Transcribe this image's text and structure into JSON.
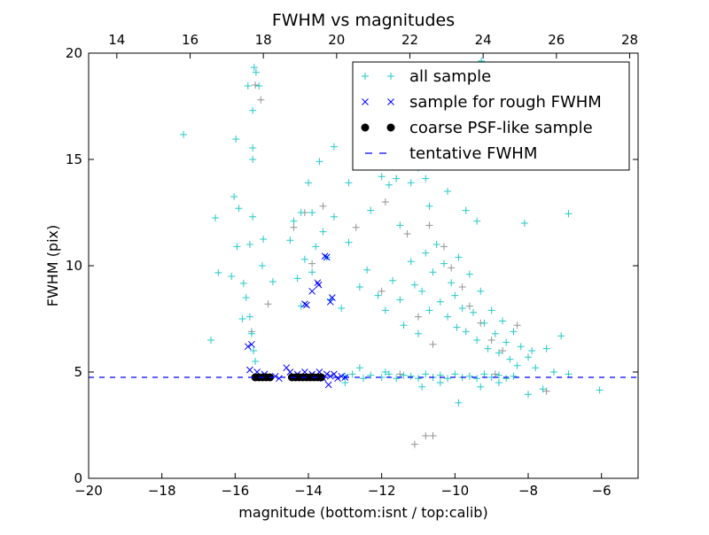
{
  "chart_data": {
    "type": "scatter",
    "title": "FWHM vs magnitudes",
    "xlabel": "magnitude (bottom:isnt / top:calib)",
    "ylabel": "FWHM (pix)",
    "xlim": [
      -20,
      -5
    ],
    "ylim": [
      0,
      20
    ],
    "top_xlim": [
      13.23,
      28.23
    ],
    "xticks": [
      -20,
      -18,
      -16,
      -14,
      -12,
      -10,
      -8,
      -6
    ],
    "xtick_labels": [
      "−20",
      "−18",
      "−16",
      "−14",
      "−12",
      "−10",
      "−8",
      "−6"
    ],
    "top_xticks": [
      14,
      16,
      18,
      20,
      22,
      24,
      26,
      28
    ],
    "top_xtick_labels": [
      "14",
      "16",
      "18",
      "20",
      "22",
      "24",
      "26",
      "28"
    ],
    "yticks": [
      0,
      5,
      10,
      15,
      20
    ],
    "ytick_labels": [
      "0",
      "5",
      "10",
      "15",
      "20"
    ],
    "legend_position": "upper-right",
    "grid": false,
    "tentative_fwhm": 4.75,
    "colors": {
      "all": "#00bfbf",
      "rejected": "#808080",
      "rough": "#0000ff",
      "psf": "#000000",
      "line": "#0000ff"
    },
    "series": [
      {
        "name": "all sample",
        "marker": "plus",
        "color": "#00bfbf",
        "points": [
          [
            -17.41,
            16.17
          ],
          [
            -15.48,
            19.33
          ],
          [
            -15.43,
            19.1
          ],
          [
            -15.65,
            18.46
          ],
          [
            -15.35,
            18.46
          ],
          [
            -15.52,
            17.3
          ],
          [
            -15.98,
            15.96
          ],
          [
            -16.03,
            13.25
          ],
          [
            -16.54,
            12.25
          ],
          [
            -16.46,
            9.67
          ],
          [
            -16.66,
            6.5
          ],
          [
            -15.52,
            15.54
          ],
          [
            -15.52,
            15.0
          ],
          [
            -15.52,
            12.3
          ],
          [
            -15.23,
            11.25
          ],
          [
            -14.97,
            9.25
          ],
          [
            -15.77,
            9.17
          ],
          [
            -15.26,
            10.0
          ],
          [
            -15.9,
            12.7
          ],
          [
            -15.6,
            11.0
          ],
          [
            -15.7,
            8.5
          ],
          [
            -15.6,
            7.6
          ],
          [
            -15.55,
            6.8
          ],
          [
            -15.5,
            6.0
          ],
          [
            -15.45,
            5.5
          ],
          [
            -15.8,
            7.5
          ],
          [
            -16.1,
            9.5
          ],
          [
            -15.95,
            10.9
          ],
          [
            -14.4,
            12.1
          ],
          [
            -14.2,
            12.5
          ],
          [
            -14.0,
            13.9
          ],
          [
            -13.9,
            12.5
          ],
          [
            -13.7,
            14.9
          ],
          [
            -13.6,
            11.6
          ],
          [
            -13.3,
            15.6
          ],
          [
            -13.3,
            12.3
          ],
          [
            -14.1,
            10.3
          ],
          [
            -14.3,
            9.4
          ],
          [
            -13.8,
            10.9
          ],
          [
            -13.5,
            10.4
          ],
          [
            -14.5,
            11.2
          ],
          [
            -13.4,
            8.4
          ],
          [
            -14.2,
            8.1
          ],
          [
            -13.9,
            9.7
          ],
          [
            -13.1,
            8.0
          ],
          [
            -12.9,
            13.9
          ],
          [
            -12.9,
            11.1
          ],
          [
            -12.6,
            9.0
          ],
          [
            -12.3,
            12.6
          ],
          [
            -12.2,
            14.7
          ],
          [
            -12.0,
            14.2
          ],
          [
            -11.8,
            13.8
          ],
          [
            -11.6,
            14.1
          ],
          [
            -11.5,
            11.9
          ],
          [
            -11.3,
            15.9
          ],
          [
            -11.2,
            13.9
          ],
          [
            -11.0,
            14.6
          ],
          [
            -10.9,
            17.2
          ],
          [
            -10.8,
            14.1
          ],
          [
            -10.7,
            12.8
          ],
          [
            -10.6,
            15.4
          ],
          [
            -10.3,
            17.5
          ],
          [
            -10.1,
            19.1
          ],
          [
            -9.9,
            16.6
          ],
          [
            -9.5,
            17.0
          ],
          [
            -9.28,
            19.63
          ],
          [
            -8.87,
            19.0
          ],
          [
            -10.2,
            13.5
          ],
          [
            -9.7,
            12.6
          ],
          [
            -9.4,
            12.1
          ],
          [
            -8.1,
            12.0
          ],
          [
            -6.9,
            12.45
          ],
          [
            -12.4,
            9.8
          ],
          [
            -12.1,
            8.6
          ],
          [
            -11.9,
            7.9
          ],
          [
            -11.7,
            9.3
          ],
          [
            -11.5,
            8.4
          ],
          [
            -11.4,
            7.2
          ],
          [
            -11.2,
            10.2
          ],
          [
            -11.1,
            9.1
          ],
          [
            -11.0,
            6.8
          ],
          [
            -10.9,
            8.8
          ],
          [
            -10.8,
            10.6
          ],
          [
            -10.7,
            7.9
          ],
          [
            -10.6,
            9.7
          ],
          [
            -10.5,
            11.0
          ],
          [
            -10.4,
            8.3
          ],
          [
            -10.3,
            10.1
          ],
          [
            -10.2,
            7.6
          ],
          [
            -10.1,
            9.2
          ],
          [
            -10.0,
            8.6
          ],
          [
            -9.95,
            7.1
          ],
          [
            -9.9,
            10.4
          ],
          [
            -9.8,
            8.0
          ],
          [
            -9.7,
            6.9
          ],
          [
            -9.6,
            9.6
          ],
          [
            -9.5,
            7.8
          ],
          [
            -9.4,
            6.5
          ],
          [
            -9.3,
            8.8
          ],
          [
            -9.2,
            7.3
          ],
          [
            -9.1,
            6.1
          ],
          [
            -9.0,
            7.9
          ],
          [
            -8.9,
            6.8
          ],
          [
            -8.8,
            5.9
          ],
          [
            -8.7,
            7.4
          ],
          [
            -8.6,
            6.4
          ],
          [
            -8.5,
            5.6
          ],
          [
            -8.4,
            6.9
          ],
          [
            -8.3,
            5.3
          ],
          [
            -8.2,
            6.2
          ],
          [
            -8.0,
            5.7
          ],
          [
            -7.9,
            6.0
          ],
          [
            -7.8,
            5.2
          ],
          [
            -7.5,
            6.1
          ],
          [
            -7.3,
            5.0
          ],
          [
            -7.1,
            6.7
          ],
          [
            -6.9,
            4.9
          ],
          [
            -6.05,
            4.15
          ],
          [
            -9.9,
            3.55
          ],
          [
            -9.3,
            4.3
          ],
          [
            -8.8,
            4.5
          ],
          [
            -8.0,
            3.95
          ],
          [
            -7.6,
            4.2
          ],
          [
            -10.4,
            4.5
          ],
          [
            -10.9,
            4.3
          ],
          [
            -13.0,
            4.8
          ],
          [
            -12.8,
            4.9
          ],
          [
            -12.5,
            4.7
          ],
          [
            -12.3,
            4.85
          ],
          [
            -12.0,
            4.75
          ],
          [
            -11.8,
            4.9
          ],
          [
            -11.6,
            4.7
          ],
          [
            -11.4,
            4.85
          ],
          [
            -11.2,
            4.8
          ],
          [
            -11.0,
            4.7
          ],
          [
            -10.8,
            4.9
          ],
          [
            -10.6,
            4.75
          ],
          [
            -10.4,
            4.85
          ],
          [
            -10.2,
            4.7
          ],
          [
            -10.0,
            4.9
          ],
          [
            -9.8,
            4.75
          ],
          [
            -9.6,
            4.8
          ],
          [
            -9.4,
            4.7
          ],
          [
            -9.2,
            4.9
          ],
          [
            -9.0,
            4.75
          ],
          [
            -8.8,
            4.85
          ],
          [
            -8.6,
            4.7
          ],
          [
            -8.4,
            4.8
          ],
          [
            -13.0,
            4.5
          ],
          [
            -12.6,
            5.2
          ],
          [
            -11.9,
            5.0
          ]
        ]
      },
      {
        "name": "rejected",
        "marker": "plus",
        "color": "#808080",
        "points": [
          [
            -15.45,
            18.5
          ],
          [
            -15.3,
            17.8
          ],
          [
            -15.55,
            6.9
          ],
          [
            -15.1,
            8.2
          ],
          [
            -14.4,
            11.8
          ],
          [
            -14.1,
            12.5
          ],
          [
            -13.9,
            10.1
          ],
          [
            -13.6,
            12.8
          ],
          [
            -12.7,
            11.8
          ],
          [
            -11.9,
            13.0
          ],
          [
            -11.3,
            11.5
          ],
          [
            -10.7,
            11.9
          ],
          [
            -10.3,
            10.9
          ],
          [
            -10.1,
            9.9
          ],
          [
            -9.8,
            9.0
          ],
          [
            -9.6,
            8.1
          ],
          [
            -9.3,
            7.3
          ],
          [
            -9.0,
            6.5
          ],
          [
            -8.7,
            6.0
          ],
          [
            -8.3,
            7.2
          ],
          [
            -12.0,
            8.8
          ],
          [
            -11.0,
            7.6
          ],
          [
            -10.6,
            6.3
          ],
          [
            -11.1,
            1.6
          ],
          [
            -10.8,
            2.0
          ],
          [
            -10.6,
            2.0
          ],
          [
            -7.5,
            4.1
          ],
          [
            -8.9,
            4.9
          ],
          [
            -11.5,
            4.9
          ]
        ]
      },
      {
        "name": "sample for rough FWHM",
        "marker": "x",
        "color": "#0000ff",
        "points": [
          [
            -15.65,
            6.2
          ],
          [
            -15.55,
            6.3
          ],
          [
            -15.6,
            5.1
          ],
          [
            -15.4,
            5.0
          ],
          [
            -15.3,
            4.8
          ],
          [
            -15.2,
            4.9
          ],
          [
            -14.9,
            4.8
          ],
          [
            -14.6,
            5.2
          ],
          [
            -14.5,
            5.0
          ],
          [
            -14.4,
            4.8
          ],
          [
            -14.3,
            4.9
          ],
          [
            -14.1,
            5.0
          ],
          [
            -13.9,
            4.9
          ],
          [
            -13.8,
            4.8
          ],
          [
            -13.7,
            5.0
          ],
          [
            -13.6,
            4.7
          ],
          [
            -13.5,
            4.9
          ],
          [
            -13.4,
            4.8
          ],
          [
            -13.3,
            4.9
          ],
          [
            -13.2,
            4.7
          ],
          [
            -13.1,
            4.8
          ],
          [
            -13.0,
            4.75
          ],
          [
            -13.55,
            10.45
          ],
          [
            -13.5,
            10.4
          ],
          [
            -13.75,
            9.2
          ],
          [
            -13.72,
            9.1
          ],
          [
            -14.1,
            8.2
          ],
          [
            -14.05,
            8.15
          ],
          [
            -13.4,
            8.3
          ],
          [
            -13.35,
            8.5
          ],
          [
            -13.9,
            8.8
          ],
          [
            -13.45,
            4.4
          ],
          [
            -14.8,
            4.7
          ]
        ]
      },
      {
        "name": "coarse PSF-like sample",
        "marker": "circle",
        "color": "#000000",
        "points": [
          [
            -15.45,
            4.75
          ],
          [
            -15.35,
            4.75
          ],
          [
            -15.25,
            4.75
          ],
          [
            -15.15,
            4.75
          ],
          [
            -15.05,
            4.75
          ],
          [
            -14.45,
            4.75
          ],
          [
            -14.35,
            4.75
          ],
          [
            -14.25,
            4.75
          ],
          [
            -14.15,
            4.75
          ],
          [
            -14.05,
            4.75
          ],
          [
            -13.95,
            4.75
          ],
          [
            -13.85,
            4.75
          ],
          [
            -13.75,
            4.75
          ],
          [
            -13.65,
            4.75
          ]
        ]
      }
    ],
    "legend": [
      {
        "label": "all sample",
        "marker": "plus",
        "color": "#00bfbf"
      },
      {
        "label": "sample for rough FWHM",
        "marker": "x",
        "color": "#0000ff"
      },
      {
        "label": "coarse PSF-like sample",
        "marker": "circle",
        "color": "#000000"
      },
      {
        "label": "tentative FWHM",
        "marker": "dash",
        "color": "#0000ff"
      }
    ]
  }
}
